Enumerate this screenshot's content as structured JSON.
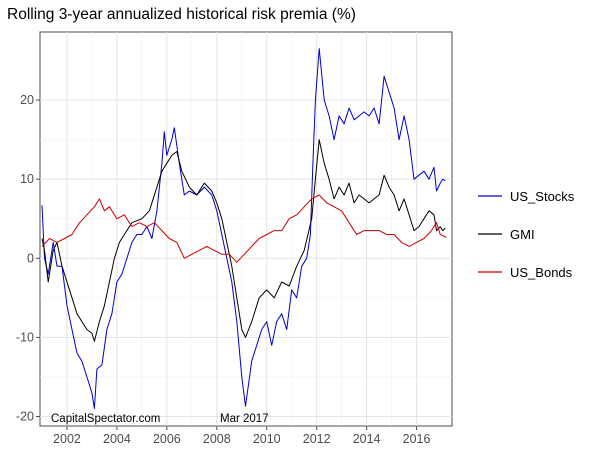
{
  "chart_data": {
    "type": "line",
    "title": "Rolling 3-year annualized historical risk premia (%)",
    "xlabel": "",
    "ylabel": "",
    "xlim": [
      2000.92,
      2017.42
    ],
    "ylim": [
      -21.2,
      28.6
    ],
    "x_ticks": [
      "2002",
      "2004",
      "2006",
      "2008",
      "2010",
      "2012",
      "2014",
      "2016"
    ],
    "y_ticks": [
      "-20",
      "-10",
      "0",
      "10",
      "20"
    ],
    "grid": true,
    "legend_position": "right",
    "annotations": [
      "CapitalSpectator.com",
      "Mar 2017"
    ],
    "series": [
      {
        "name": "US_Stocks",
        "color": "#0000cc",
        "points": [
          [
            2001.0,
            6.7
          ],
          [
            2001.1,
            0.0
          ],
          [
            2001.25,
            -2.0
          ],
          [
            2001.45,
            2.0
          ],
          [
            2001.6,
            -1.0
          ],
          [
            2001.8,
            -1.0
          ],
          [
            2002.0,
            -6.0
          ],
          [
            2002.2,
            -9.0
          ],
          [
            2002.4,
            -12.0
          ],
          [
            2002.6,
            -13.0
          ],
          [
            2002.8,
            -15.0
          ],
          [
            2003.0,
            -17.0
          ],
          [
            2003.1,
            -19.0
          ],
          [
            2003.2,
            -14.0
          ],
          [
            2003.4,
            -13.5
          ],
          [
            2003.6,
            -9.0
          ],
          [
            2003.8,
            -7.0
          ],
          [
            2004.0,
            -3.0
          ],
          [
            2004.2,
            -2.0
          ],
          [
            2004.4,
            0.0
          ],
          [
            2004.6,
            2.0
          ],
          [
            2004.8,
            3.0
          ],
          [
            2005.0,
            3.0
          ],
          [
            2005.2,
            4.0
          ],
          [
            2005.4,
            2.5
          ],
          [
            2005.6,
            6.0
          ],
          [
            2005.8,
            12.0
          ],
          [
            2005.9,
            16.0
          ],
          [
            2006.0,
            13.0
          ],
          [
            2006.2,
            15.0
          ],
          [
            2006.3,
            16.5
          ],
          [
            2006.5,
            12.0
          ],
          [
            2006.7,
            8.0
          ],
          [
            2006.9,
            8.5
          ],
          [
            2007.2,
            8.0
          ],
          [
            2007.5,
            9.0
          ],
          [
            2007.8,
            8.0
          ],
          [
            2008.0,
            6.0
          ],
          [
            2008.2,
            3.0
          ],
          [
            2008.4,
            0.0
          ],
          [
            2008.6,
            -3.0
          ],
          [
            2008.8,
            -8.0
          ],
          [
            2009.0,
            -15.0
          ],
          [
            2009.15,
            -18.7
          ],
          [
            2009.4,
            -13.0
          ],
          [
            2009.6,
            -11.0
          ],
          [
            2009.8,
            -9.0
          ],
          [
            2010.0,
            -8.0
          ],
          [
            2010.2,
            -11.0
          ],
          [
            2010.4,
            -8.0
          ],
          [
            2010.6,
            -7.0
          ],
          [
            2010.8,
            -9.0
          ],
          [
            2011.0,
            -4.0
          ],
          [
            2011.2,
            -5.0
          ],
          [
            2011.4,
            -1.0
          ],
          [
            2011.6,
            0.0
          ],
          [
            2011.75,
            3.0
          ],
          [
            2011.85,
            12.0
          ],
          [
            2011.95,
            20.0
          ],
          [
            2012.1,
            26.5
          ],
          [
            2012.3,
            20.0
          ],
          [
            2012.5,
            18.0
          ],
          [
            2012.7,
            15.0
          ],
          [
            2012.9,
            18.0
          ],
          [
            2013.1,
            17.0
          ],
          [
            2013.3,
            19.0
          ],
          [
            2013.5,
            17.5
          ],
          [
            2013.7,
            18.0
          ],
          [
            2013.9,
            18.5
          ],
          [
            2014.1,
            18.0
          ],
          [
            2014.3,
            19.0
          ],
          [
            2014.5,
            17.0
          ],
          [
            2014.7,
            23.0
          ],
          [
            2014.9,
            21.0
          ],
          [
            2015.1,
            19.0
          ],
          [
            2015.3,
            15.0
          ],
          [
            2015.5,
            18.0
          ],
          [
            2015.7,
            15.0
          ],
          [
            2015.9,
            10.0
          ],
          [
            2016.1,
            10.5
          ],
          [
            2016.3,
            11.0
          ],
          [
            2016.5,
            10.0
          ],
          [
            2016.7,
            11.5
          ],
          [
            2016.8,
            8.5
          ],
          [
            2016.95,
            9.5
          ],
          [
            2017.05,
            10.0
          ],
          [
            2017.15,
            9.8
          ]
        ]
      },
      {
        "name": "GMI",
        "color": "#000000",
        "points": [
          [
            2001.0,
            2.5
          ],
          [
            2001.1,
            1.0
          ],
          [
            2001.25,
            -3.0
          ],
          [
            2001.45,
            1.0
          ],
          [
            2001.6,
            2.0
          ],
          [
            2001.8,
            -1.0
          ],
          [
            2002.0,
            -3.0
          ],
          [
            2002.2,
            -5.0
          ],
          [
            2002.4,
            -7.0
          ],
          [
            2002.6,
            -8.0
          ],
          [
            2002.8,
            -9.0
          ],
          [
            2003.0,
            -9.5
          ],
          [
            2003.1,
            -10.5
          ],
          [
            2003.3,
            -8.0
          ],
          [
            2003.5,
            -6.0
          ],
          [
            2003.7,
            -3.0
          ],
          [
            2003.9,
            0.0
          ],
          [
            2004.1,
            2.0
          ],
          [
            2004.3,
            3.0
          ],
          [
            2004.6,
            4.5
          ],
          [
            2005.0,
            5.0
          ],
          [
            2005.3,
            6.0
          ],
          [
            2005.6,
            9.0
          ],
          [
            2005.8,
            11.0
          ],
          [
            2006.0,
            12.0
          ],
          [
            2006.2,
            13.0
          ],
          [
            2006.4,
            13.5
          ],
          [
            2006.6,
            11.0
          ],
          [
            2006.9,
            9.0
          ],
          [
            2007.2,
            8.0
          ],
          [
            2007.5,
            9.5
          ],
          [
            2007.8,
            8.5
          ],
          [
            2008.0,
            7.0
          ],
          [
            2008.2,
            5.0
          ],
          [
            2008.4,
            2.0
          ],
          [
            2008.6,
            -1.0
          ],
          [
            2008.8,
            -5.0
          ],
          [
            2009.0,
            -9.0
          ],
          [
            2009.15,
            -10.0
          ],
          [
            2009.4,
            -8.0
          ],
          [
            2009.7,
            -5.0
          ],
          [
            2010.0,
            -4.0
          ],
          [
            2010.3,
            -5.0
          ],
          [
            2010.6,
            -3.0
          ],
          [
            2010.9,
            -3.5
          ],
          [
            2011.2,
            -1.0
          ],
          [
            2011.5,
            1.0
          ],
          [
            2011.8,
            5.0
          ],
          [
            2011.95,
            10.0
          ],
          [
            2012.1,
            15.0
          ],
          [
            2012.3,
            12.0
          ],
          [
            2012.5,
            10.0
          ],
          [
            2012.7,
            7.5
          ],
          [
            2012.9,
            9.0
          ],
          [
            2013.1,
            8.0
          ],
          [
            2013.3,
            9.5
          ],
          [
            2013.5,
            7.0
          ],
          [
            2013.7,
            8.0
          ],
          [
            2013.9,
            7.5
          ],
          [
            2014.1,
            7.0
          ],
          [
            2014.3,
            7.5
          ],
          [
            2014.5,
            8.0
          ],
          [
            2014.7,
            10.5
          ],
          [
            2014.9,
            9.0
          ],
          [
            2015.1,
            8.0
          ],
          [
            2015.3,
            6.0
          ],
          [
            2015.5,
            7.5
          ],
          [
            2015.7,
            5.5
          ],
          [
            2015.9,
            3.5
          ],
          [
            2016.1,
            4.0
          ],
          [
            2016.3,
            5.0
          ],
          [
            2016.5,
            6.0
          ],
          [
            2016.7,
            5.5
          ],
          [
            2016.8,
            3.5
          ],
          [
            2016.95,
            4.0
          ],
          [
            2017.05,
            3.5
          ],
          [
            2017.15,
            3.8
          ]
        ]
      },
      {
        "name": "US_Bonds",
        "color": "#cc0000",
        "points": [
          [
            2001.0,
            1.5
          ],
          [
            2001.3,
            2.5
          ],
          [
            2001.6,
            2.0
          ],
          [
            2001.9,
            2.5
          ],
          [
            2002.2,
            3.0
          ],
          [
            2002.5,
            4.5
          ],
          [
            2002.8,
            5.5
          ],
          [
            2003.1,
            6.5
          ],
          [
            2003.3,
            7.5
          ],
          [
            2003.5,
            6.0
          ],
          [
            2003.7,
            6.5
          ],
          [
            2004.0,
            5.0
          ],
          [
            2004.3,
            5.5
          ],
          [
            2004.6,
            4.0
          ],
          [
            2004.9,
            4.5
          ],
          [
            2005.2,
            4.0
          ],
          [
            2005.5,
            4.5
          ],
          [
            2005.8,
            3.5
          ],
          [
            2006.1,
            2.5
          ],
          [
            2006.4,
            2.0
          ],
          [
            2006.7,
            0.0
          ],
          [
            2007.0,
            0.5
          ],
          [
            2007.3,
            1.0
          ],
          [
            2007.6,
            1.5
          ],
          [
            2007.9,
            1.0
          ],
          [
            2008.2,
            0.5
          ],
          [
            2008.5,
            0.5
          ],
          [
            2008.8,
            -0.5
          ],
          [
            2009.1,
            0.5
          ],
          [
            2009.4,
            1.5
          ],
          [
            2009.7,
            2.5
          ],
          [
            2010.0,
            3.0
          ],
          [
            2010.3,
            3.5
          ],
          [
            2010.6,
            3.5
          ],
          [
            2010.9,
            5.0
          ],
          [
            2011.2,
            5.5
          ],
          [
            2011.5,
            6.5
          ],
          [
            2011.8,
            7.5
          ],
          [
            2012.1,
            8.0
          ],
          [
            2012.4,
            7.0
          ],
          [
            2012.7,
            6.5
          ],
          [
            2013.0,
            6.0
          ],
          [
            2013.3,
            4.5
          ],
          [
            2013.6,
            3.0
          ],
          [
            2013.9,
            3.5
          ],
          [
            2014.2,
            3.5
          ],
          [
            2014.5,
            3.5
          ],
          [
            2014.8,
            3.0
          ],
          [
            2015.1,
            3.0
          ],
          [
            2015.4,
            2.0
          ],
          [
            2015.7,
            1.5
          ],
          [
            2016.0,
            2.0
          ],
          [
            2016.3,
            2.5
          ],
          [
            2016.6,
            3.5
          ],
          [
            2016.8,
            4.5
          ],
          [
            2016.95,
            3.0
          ],
          [
            2017.1,
            2.8
          ],
          [
            2017.2,
            2.6
          ]
        ]
      }
    ]
  }
}
